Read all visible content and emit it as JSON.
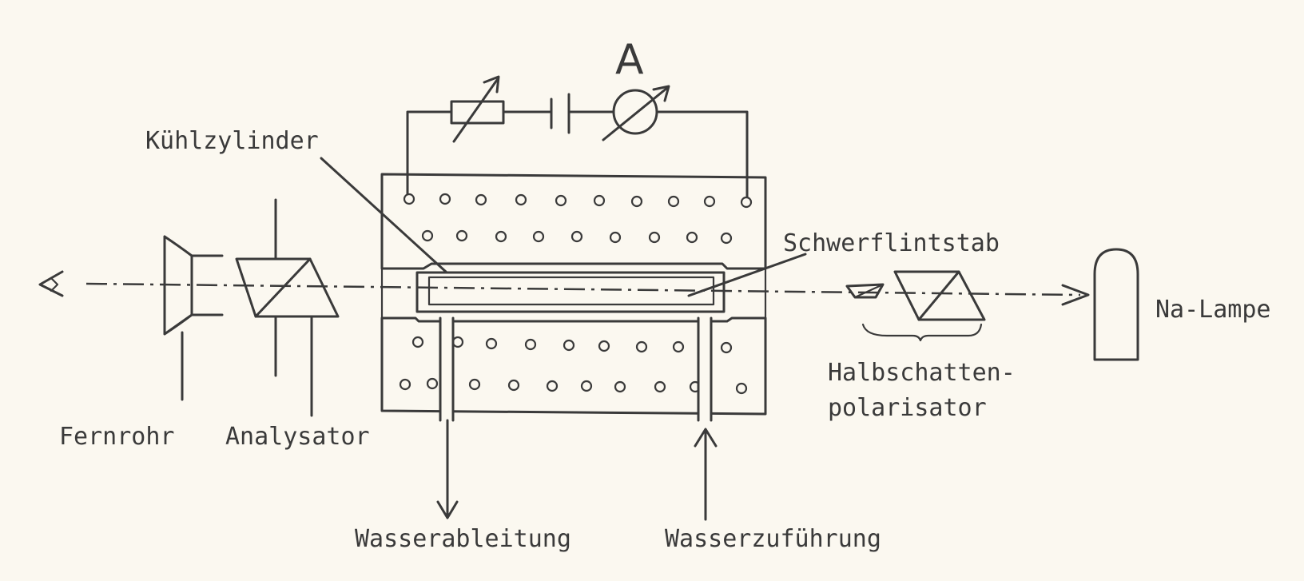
{
  "labels": {
    "ammeter": "A",
    "cooling_cylinder": "Kühlzylinder",
    "flint_rod": "Schwerflintstab",
    "lamp": "Na-Lampe",
    "half_shade_1": "Halbschatten-",
    "half_shade_2": "polarisator",
    "telescope": "Fernrohr",
    "analyzer": "Analysator",
    "water_out": "Wasserableitung",
    "water_in": "Wasserzuführung"
  },
  "icons": {
    "eye": "eye-icon",
    "resistor": "variable-resistor-icon",
    "battery": "battery-icon",
    "ammeter": "ammeter-icon",
    "lamp": "sodium-lamp-icon"
  }
}
